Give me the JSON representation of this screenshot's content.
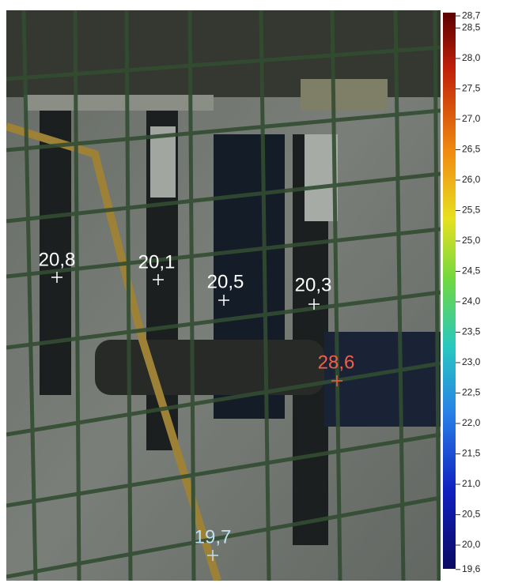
{
  "spots": [
    {
      "label": "20,8"
    },
    {
      "label": "20,1"
    },
    {
      "label": "20,5"
    },
    {
      "label": "20,3"
    },
    {
      "label": "28,6"
    },
    {
      "label": "19,7"
    }
  ],
  "scale": {
    "ticks": [
      "28,7",
      "28,5",
      "28,0",
      "27,5",
      "27,0",
      "26,5",
      "26,0",
      "25,5",
      "25,0",
      "24,5",
      "24,0",
      "23,5",
      "23,0",
      "22,5",
      "22,0",
      "21,5",
      "21,0",
      "20,5",
      "20,0",
      "19,6"
    ]
  }
}
